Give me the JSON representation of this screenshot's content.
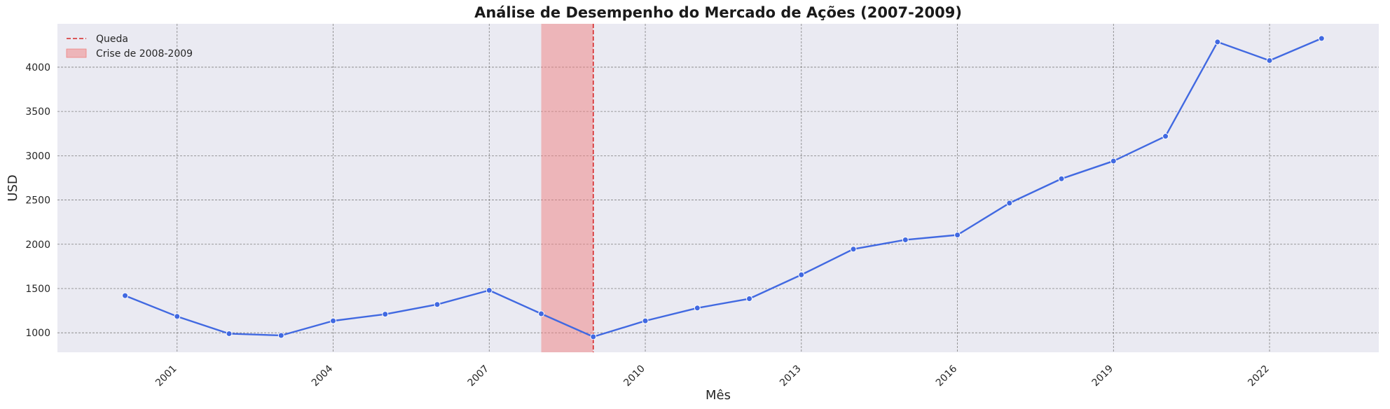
{
  "chart_data": {
    "type": "line",
    "title": "Análise de Desempenho do Mercado de Ações (2007-2009)",
    "xlabel": "Mês",
    "ylabel": "USD",
    "x_tick_labels": [
      "2001",
      "2004",
      "2007",
      "2010",
      "2013",
      "2016",
      "2019",
      "2022"
    ],
    "y_tick_labels": [
      "1000",
      "1500",
      "2000",
      "2500",
      "3000",
      "3500",
      "4000"
    ],
    "xlim": [
      1998.7,
      2024.1
    ],
    "ylim": [
      780,
      4490
    ],
    "grid": true,
    "legend_position": "top-left",
    "series": [
      {
        "x": [
          2000,
          2001,
          2002,
          2003,
          2004,
          2005,
          2006,
          2007,
          2008,
          2009,
          2010,
          2011,
          2012,
          2013,
          2014,
          2015,
          2016,
          2017,
          2018,
          2019,
          2020,
          2021,
          2022,
          2023
        ],
        "values": [
          1420,
          1185,
          990,
          970,
          1135,
          1210,
          1320,
          1480,
          1215,
          955,
          1135,
          1280,
          1385,
          1655,
          1945,
          2050,
          2105,
          2465,
          2740,
          2940,
          3220,
          4285,
          4075,
          4325
        ],
        "color": "#4169e1"
      }
    ],
    "annotations": {
      "drop_line": {
        "x": 2009,
        "label": "Queda",
        "color": "#d62728"
      },
      "crisis_span": {
        "x_start": 2008,
        "x_end": 2009,
        "label": "Crise de 2008-2009",
        "color": "#f08080"
      }
    },
    "colors": {
      "plot_background": "#eaeaf2",
      "grid": "#808080",
      "line": "#4169e1"
    }
  }
}
